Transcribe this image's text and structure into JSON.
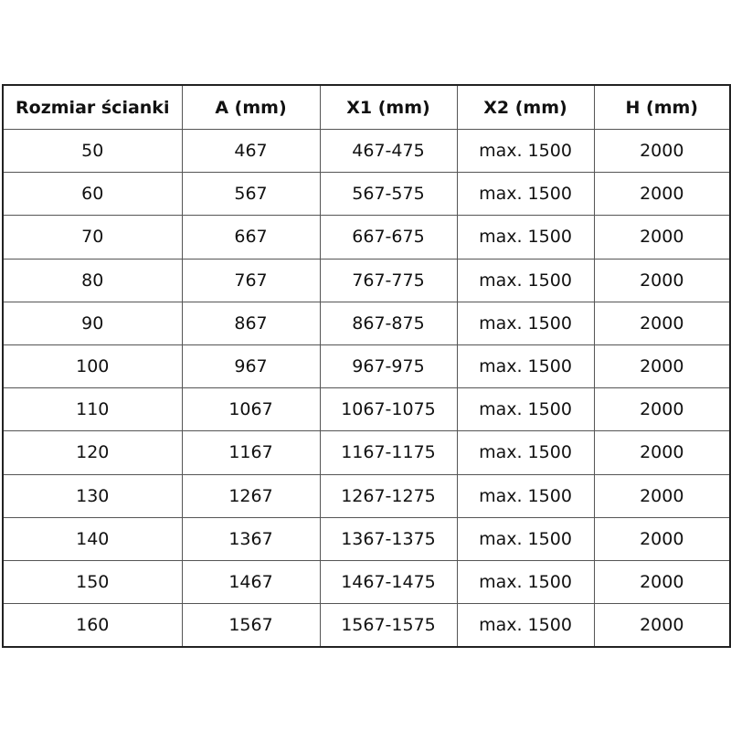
{
  "headers": [
    "Rozmiar ścianki",
    "A (mm)",
    "X1 (mm)",
    "X2 (mm)",
    "H (mm)"
  ],
  "rows": [
    [
      "50",
      "467",
      "467-475",
      "max. 1500",
      "2000"
    ],
    [
      "60",
      "567",
      "567-575",
      "max. 1500",
      "2000"
    ],
    [
      "70",
      "667",
      "667-675",
      "max. 1500",
      "2000"
    ],
    [
      "80",
      "767",
      "767-775",
      "max. 1500",
      "2000"
    ],
    [
      "90",
      "867",
      "867-875",
      "max. 1500",
      "2000"
    ],
    [
      "100",
      "967",
      "967-975",
      "max. 1500",
      "2000"
    ],
    [
      "110",
      "1067",
      "1067-1075",
      "max. 1500",
      "2000"
    ],
    [
      "120",
      "1167",
      "1167-1175",
      "max. 1500",
      "2000"
    ],
    [
      "130",
      "1267",
      "1267-1275",
      "max. 1500",
      "2000"
    ],
    [
      "140",
      "1367",
      "1367-1375",
      "max. 1500",
      "2000"
    ],
    [
      "150",
      "1467",
      "1467-1475",
      "max. 1500",
      "2000"
    ],
    [
      "160",
      "1567",
      "1567-1575",
      "max. 1500",
      "2000"
    ]
  ]
}
